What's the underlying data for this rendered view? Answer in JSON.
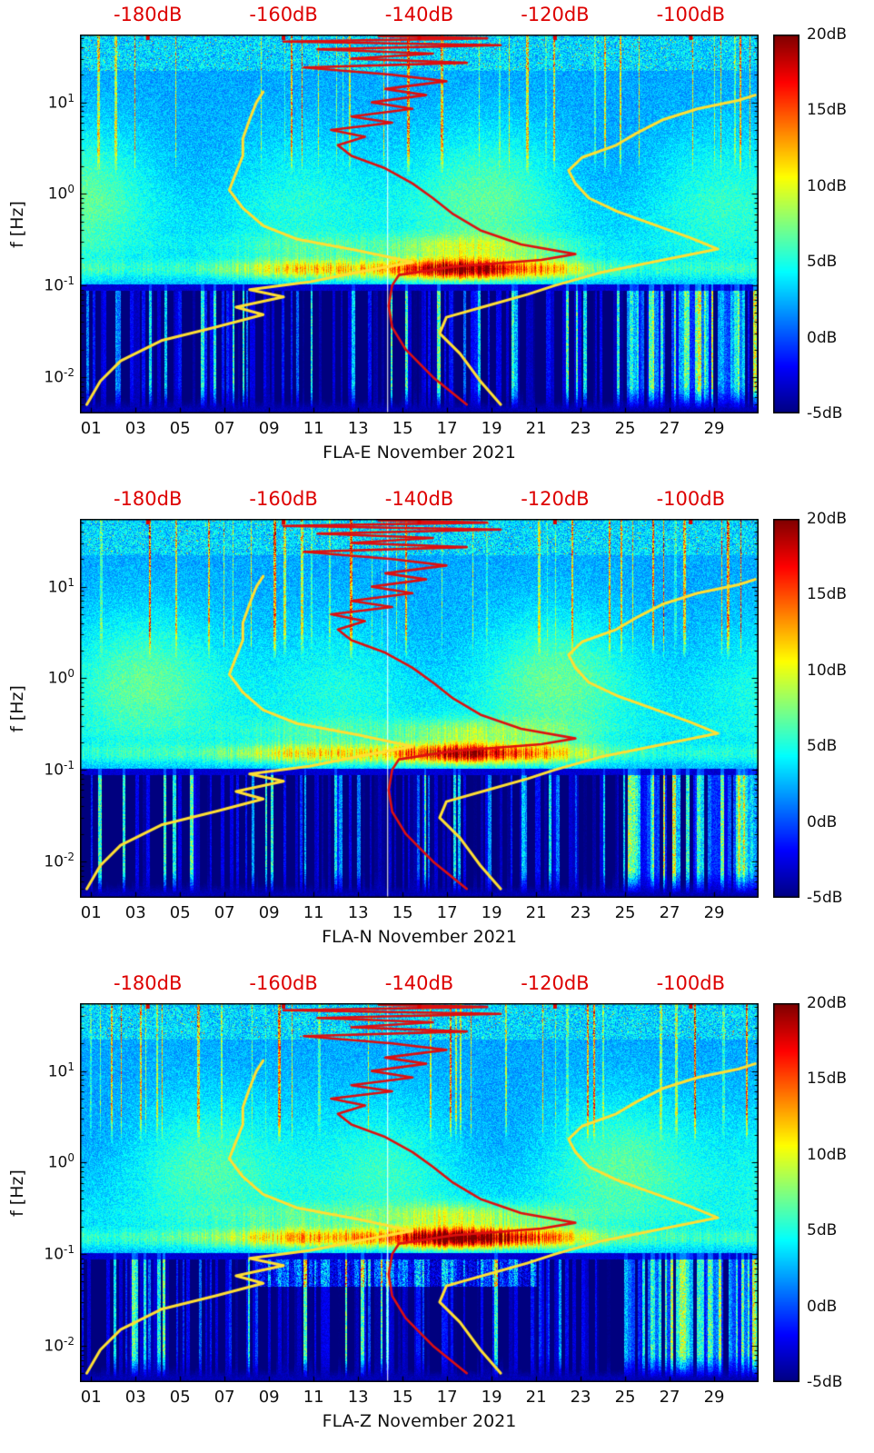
{
  "chart_data": {
    "type": "heatmap",
    "description": "Three stacked spectrogram panels (power relative to noise model, dB) versus day of November 2021 and frequency, with jet colormap, overlaid yellow low/high noise-model curves and red median spectrum curve plotted against the top dB axis.",
    "charts": [
      {
        "title": "FLA-E November 2021",
        "seed": 11,
        "band_gain": 1.0,
        "extra_low_band": 0
      },
      {
        "title": "FLA-N November 2021",
        "seed": 29,
        "band_gain": 0.95,
        "extra_low_band": 0
      },
      {
        "title": "FLA-Z November 2021",
        "seed": 47,
        "band_gain": 1.15,
        "extra_low_band": 1
      }
    ],
    "x_axis": {
      "month": "November 2021",
      "range_days": [
        0.5,
        31
      ],
      "ticks": [
        1,
        3,
        5,
        7,
        9,
        11,
        13,
        15,
        17,
        19,
        21,
        23,
        25,
        27,
        29
      ],
      "tick_labels": [
        "01",
        "03",
        "05",
        "07",
        "09",
        "11",
        "13",
        "15",
        "17",
        "19",
        "21",
        "23",
        "25",
        "27",
        "29"
      ]
    },
    "y_axis": {
      "label": "f [Hz]",
      "scale": "log10",
      "range_hz": [
        0.004,
        55
      ],
      "ticks": [
        {
          "hz": 10,
          "base": "10",
          "exp": "1"
        },
        {
          "hz": 1,
          "base": "10",
          "exp": "0"
        },
        {
          "hz": 0.1,
          "base": "10",
          "exp": "-1"
        },
        {
          "hz": 0.01,
          "base": "10",
          "exp": "-2"
        }
      ]
    },
    "top_axis": {
      "unit": "dB",
      "color": "#dd0000",
      "range_db": [
        -190,
        -90
      ],
      "ticks": [
        {
          "db": -180,
          "label": "-180dB"
        },
        {
          "db": -160,
          "label": "-160dB"
        },
        {
          "db": -140,
          "label": "-140dB"
        },
        {
          "db": -120,
          "label": "-120dB"
        },
        {
          "db": -100,
          "label": "-100dB"
        }
      ]
    },
    "colorbar": {
      "colormap": "jet",
      "range_db": [
        -5,
        20
      ],
      "ticks": [
        {
          "db": 20,
          "label": "20dB"
        },
        {
          "db": 15,
          "label": "15dB"
        },
        {
          "db": 10,
          "label": "10dB"
        },
        {
          "db": 5,
          "label": "5dB"
        },
        {
          "db": 0,
          "label": "0dB"
        },
        {
          "db": -5,
          "label": "-5dB"
        }
      ]
    },
    "overlays": [
      {
        "name": "yellow-noise-model-low-curve",
        "color": "#ffdf33",
        "width": 3,
        "points_db_hz": [
          [
            -189,
            0.005
          ],
          [
            -187,
            0.009
          ],
          [
            -184,
            0.015
          ],
          [
            -178,
            0.025
          ],
          [
            -170,
            0.035
          ],
          [
            -163,
            0.048
          ],
          [
            -167,
            0.058
          ],
          [
            -160,
            0.075
          ],
          [
            -165,
            0.09
          ],
          [
            -156,
            0.11
          ],
          [
            -149,
            0.14
          ],
          [
            -141,
            0.18
          ],
          [
            -149,
            0.24
          ],
          [
            -158,
            0.32
          ],
          [
            -163,
            0.45
          ],
          [
            -166,
            0.7
          ],
          [
            -168,
            1.1
          ],
          [
            -167,
            1.7
          ],
          [
            -166,
            2.6
          ],
          [
            -166,
            4.0
          ],
          [
            -165,
            6.5
          ],
          [
            -164,
            10
          ],
          [
            -163,
            13
          ]
        ]
      },
      {
        "name": "yellow-noise-model-high-curve",
        "color": "#ffdf33",
        "width": 3,
        "points_db_hz": [
          [
            -128,
            0.005
          ],
          [
            -131,
            0.009
          ],
          [
            -134,
            0.018
          ],
          [
            -137,
            0.03
          ],
          [
            -136,
            0.045
          ],
          [
            -130,
            0.06
          ],
          [
            -124,
            0.08
          ],
          [
            -120,
            0.1
          ],
          [
            -113,
            0.14
          ],
          [
            -104,
            0.19
          ],
          [
            -96,
            0.25
          ],
          [
            -100,
            0.33
          ],
          [
            -105,
            0.45
          ],
          [
            -111,
            0.65
          ],
          [
            -115,
            0.9
          ],
          [
            -117,
            1.3
          ],
          [
            -118,
            1.8
          ],
          [
            -116,
            2.5
          ],
          [
            -111,
            3.4
          ],
          [
            -108,
            4.6
          ],
          [
            -104,
            6.5
          ],
          [
            -99,
            8.5
          ],
          [
            -93,
            10.5
          ],
          [
            -90.5,
            12
          ]
        ]
      },
      {
        "name": "red-median-spectrum-curve",
        "color": "#dd1010",
        "width": 2.6,
        "points_db_hz": [
          [
            -133,
            0.005
          ],
          [
            -138,
            0.01
          ],
          [
            -142,
            0.02
          ],
          [
            -144,
            0.035
          ],
          [
            -144.5,
            0.06
          ],
          [
            -144,
            0.1
          ],
          [
            -143,
            0.13
          ],
          [
            -135,
            0.16
          ],
          [
            -122,
            0.19
          ],
          [
            -117,
            0.22
          ],
          [
            -125,
            0.28
          ],
          [
            -131,
            0.4
          ],
          [
            -135,
            0.6
          ],
          [
            -138,
            0.9
          ],
          [
            -141,
            1.3
          ],
          [
            -145,
            1.9
          ],
          [
            -150,
            2.6
          ],
          [
            -152,
            3.4
          ],
          [
            -148,
            4.2
          ],
          [
            -153,
            5
          ],
          [
            -144,
            6
          ],
          [
            -150,
            7
          ],
          [
            -141,
            8.5
          ],
          [
            -147,
            10
          ],
          [
            -139,
            12
          ],
          [
            -145,
            14
          ],
          [
            -136,
            17
          ],
          [
            -144,
            20
          ],
          [
            -157,
            24
          ],
          [
            -133,
            27
          ],
          [
            -150,
            30
          ],
          [
            -138,
            34
          ],
          [
            -155,
            38
          ],
          [
            -128,
            42
          ],
          [
            -160,
            46
          ],
          [
            -130,
            50
          ],
          [
            -146,
            53
          ]
        ]
      }
    ],
    "features": {
      "microseism_band_hz": [
        0.1,
        0.3
      ],
      "strong_band_days": [
        8,
        23
      ],
      "quiet_dark_band_hz": [
        0.02,
        0.1
      ],
      "low_freq_bright_days": [
        25,
        31
      ],
      "white_line_day": 14.3
    }
  }
}
